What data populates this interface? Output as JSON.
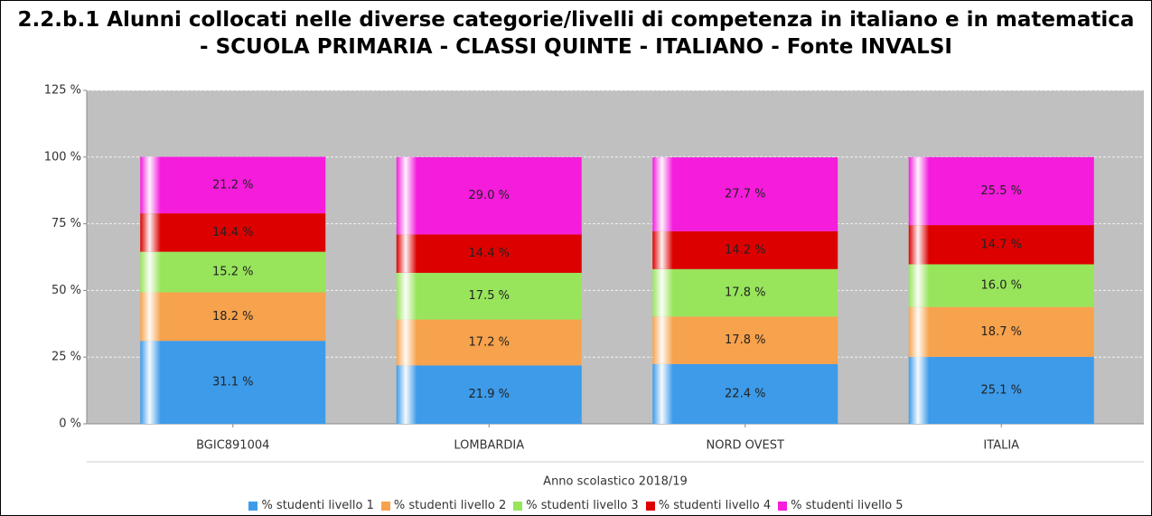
{
  "chart_data": {
    "type": "stacked_bar",
    "title": "2.2.b.1 Alunni collocati nelle diverse categorie/livelli di competenza in italiano e in matematica - SCUOLA PRIMARIA - CLASSI QUINTE - ITALIANO - Fonte INVALSI",
    "x_label": "Anno scolastico 2018/19",
    "categories": [
      "BGIC891004",
      "LOMBARDIA",
      "NORD OVEST",
      "ITALIA"
    ],
    "series": [
      {
        "name": "% studenti livello 1",
        "color": "#3d9be9",
        "values": [
          31.1,
          21.9,
          22.4,
          25.1
        ],
        "value_labels": [
          "31.1 %",
          "21.9 %",
          "22.4 %",
          "25.1 %"
        ]
      },
      {
        "name": "% studenti livello 2",
        "color": "#f7a24c",
        "values": [
          18.2,
          17.2,
          17.8,
          18.7
        ],
        "value_labels": [
          "18.2 %",
          "17.2 %",
          "17.8 %",
          "18.7 %"
        ]
      },
      {
        "name": "% studenti livello 3",
        "color": "#98e55c",
        "values": [
          15.2,
          17.5,
          17.8,
          16.0
        ],
        "value_labels": [
          "15.2 %",
          "17.5 %",
          "17.8 %",
          "16.0 %"
        ]
      },
      {
        "name": "% studenti livello 4",
        "color": "#dd0000",
        "values": [
          14.4,
          14.4,
          14.2,
          14.7
        ],
        "value_labels": [
          "14.4 %",
          "14.4 %",
          "14.2 %",
          "14.7 %"
        ]
      },
      {
        "name": "% studenti livello 5",
        "color": "#f51cdc",
        "values": [
          21.2,
          29.0,
          27.7,
          25.5
        ],
        "value_labels": [
          "21.2 %",
          "29.0 %",
          "27.7 %",
          "25.5 %"
        ]
      }
    ],
    "ylim": [
      0,
      125
    ],
    "yticks": [
      {
        "value": 0,
        "label": "0 %"
      },
      {
        "value": 25,
        "label": "25 %"
      },
      {
        "value": 50,
        "label": "50 %"
      },
      {
        "value": 75,
        "label": "75 %"
      },
      {
        "value": 100,
        "label": "100 %"
      },
      {
        "value": 125,
        "label": "125 %"
      }
    ],
    "grid": true,
    "legend": "bottom"
  }
}
